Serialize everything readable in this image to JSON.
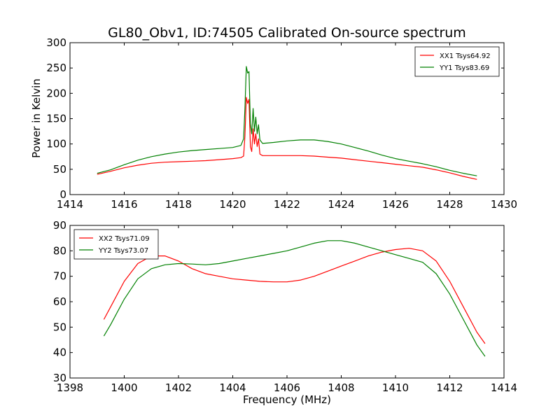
{
  "chart_data": [
    {
      "type": "line",
      "title": "GL80_Obv1, ID:74505 Calibrated On-source spectrum",
      "xlabel": "",
      "ylabel": "Power in Kelvin",
      "xlim": [
        1414,
        1430
      ],
      "ylim": [
        0,
        300
      ],
      "xticks": [
        "1414",
        "1416",
        "1418",
        "1420",
        "1422",
        "1424",
        "1426",
        "1428",
        "1430"
      ],
      "yticks": [
        "0",
        "50",
        "100",
        "150",
        "200",
        "250",
        "300"
      ],
      "legend_position": "top-right",
      "grid": false,
      "series": [
        {
          "name": "XX1 Tsys64.92",
          "color": "#ff0000",
          "points": [
            [
              1415.0,
              40
            ],
            [
              1415.5,
              46
            ],
            [
              1416.0,
              53
            ],
            [
              1416.5,
              58
            ],
            [
              1417.0,
              62
            ],
            [
              1417.5,
              64
            ],
            [
              1418.0,
              65
            ],
            [
              1418.5,
              66
            ],
            [
              1419.0,
              67
            ],
            [
              1419.5,
              69
            ],
            [
              1420.0,
              71
            ],
            [
              1420.3,
              73
            ],
            [
              1420.4,
              76
            ],
            [
              1420.45,
              115
            ],
            [
              1420.5,
              192
            ],
            [
              1420.55,
              180
            ],
            [
              1420.6,
              188
            ],
            [
              1420.65,
              95
            ],
            [
              1420.7,
              85
            ],
            [
              1420.75,
              130
            ],
            [
              1420.8,
              100
            ],
            [
              1420.85,
              120
            ],
            [
              1420.9,
              95
            ],
            [
              1420.95,
              110
            ],
            [
              1421.0,
              80
            ],
            [
              1421.1,
              77
            ],
            [
              1421.5,
              77
            ],
            [
              1422.0,
              77
            ],
            [
              1422.5,
              77
            ],
            [
              1423.0,
              76
            ],
            [
              1423.5,
              74
            ],
            [
              1424.0,
              72
            ],
            [
              1424.5,
              69
            ],
            [
              1425.0,
              66
            ],
            [
              1425.5,
              63
            ],
            [
              1426.0,
              60
            ],
            [
              1426.5,
              57
            ],
            [
              1427.0,
              54
            ],
            [
              1427.5,
              49
            ],
            [
              1428.0,
              43
            ],
            [
              1428.5,
              36
            ],
            [
              1429.0,
              30
            ]
          ]
        },
        {
          "name": "YY1 Tsys83.69",
          "color": "#008000",
          "points": [
            [
              1415.0,
              42
            ],
            [
              1415.5,
              49
            ],
            [
              1416.0,
              59
            ],
            [
              1416.5,
              68
            ],
            [
              1417.0,
              75
            ],
            [
              1417.5,
              80
            ],
            [
              1418.0,
              84
            ],
            [
              1418.5,
              87
            ],
            [
              1419.0,
              89
            ],
            [
              1419.5,
              91
            ],
            [
              1420.0,
              93
            ],
            [
              1420.3,
              97
            ],
            [
              1420.4,
              110
            ],
            [
              1420.45,
              170
            ],
            [
              1420.5,
              253
            ],
            [
              1420.55,
              240
            ],
            [
              1420.6,
              243
            ],
            [
              1420.65,
              140
            ],
            [
              1420.7,
              120
            ],
            [
              1420.75,
              170
            ],
            [
              1420.8,
              125
            ],
            [
              1420.85,
              153
            ],
            [
              1420.9,
              120
            ],
            [
              1420.95,
              138
            ],
            [
              1421.0,
              108
            ],
            [
              1421.1,
              101
            ],
            [
              1421.5,
              103
            ],
            [
              1422.0,
              106
            ],
            [
              1422.5,
              108
            ],
            [
              1423.0,
              108
            ],
            [
              1423.5,
              105
            ],
            [
              1424.0,
              100
            ],
            [
              1424.5,
              93
            ],
            [
              1425.0,
              86
            ],
            [
              1425.5,
              78
            ],
            [
              1426.0,
              71
            ],
            [
              1426.5,
              66
            ],
            [
              1427.0,
              61
            ],
            [
              1427.5,
              55
            ],
            [
              1428.0,
              48
            ],
            [
              1428.5,
              42
            ],
            [
              1429.0,
              37
            ]
          ]
        }
      ]
    },
    {
      "type": "line",
      "title": "",
      "xlabel": "Frequency (MHz)",
      "ylabel": "",
      "xlim": [
        1398,
        1414
      ],
      "ylim": [
        30,
        90
      ],
      "xticks": [
        "1398",
        "1400",
        "1402",
        "1404",
        "1406",
        "1408",
        "1410",
        "1412",
        "1414"
      ],
      "yticks": [
        "30",
        "40",
        "50",
        "60",
        "70",
        "80",
        "90"
      ],
      "legend_position": "top-left",
      "grid": false,
      "series": [
        {
          "name": "XX2 Tsys71.09",
          "color": "#ff0000",
          "points": [
            [
              1399.25,
              53
            ],
            [
              1399.5,
              58
            ],
            [
              1400.0,
              68
            ],
            [
              1400.5,
              75
            ],
            [
              1401.0,
              78
            ],
            [
              1401.5,
              78
            ],
            [
              1402.0,
              76
            ],
            [
              1402.5,
              73
            ],
            [
              1403.0,
              71
            ],
            [
              1403.5,
              70
            ],
            [
              1404.0,
              69
            ],
            [
              1404.5,
              68.5
            ],
            [
              1405.0,
              68
            ],
            [
              1405.5,
              67.8
            ],
            [
              1406.0,
              67.8
            ],
            [
              1406.5,
              68.5
            ],
            [
              1407.0,
              70
            ],
            [
              1407.5,
              72
            ],
            [
              1408.0,
              74
            ],
            [
              1408.5,
              76
            ],
            [
              1409.0,
              78
            ],
            [
              1409.5,
              79.5
            ],
            [
              1410.0,
              80.5
            ],
            [
              1410.5,
              81
            ],
            [
              1411.0,
              80
            ],
            [
              1411.5,
              76
            ],
            [
              1412.0,
              68
            ],
            [
              1412.5,
              58
            ],
            [
              1413.0,
              48
            ],
            [
              1413.3,
              43.5
            ]
          ]
        },
        {
          "name": "YY2 Tsys73.07",
          "color": "#008000",
          "points": [
            [
              1399.25,
              46.5
            ],
            [
              1399.5,
              51
            ],
            [
              1400.0,
              61
            ],
            [
              1400.5,
              69
            ],
            [
              1401.0,
              73
            ],
            [
              1401.5,
              74.5
            ],
            [
              1402.0,
              75
            ],
            [
              1402.5,
              74.8
            ],
            [
              1403.0,
              74.5
            ],
            [
              1403.5,
              75
            ],
            [
              1404.0,
              76
            ],
            [
              1404.5,
              77
            ],
            [
              1405.0,
              78
            ],
            [
              1405.5,
              79
            ],
            [
              1406.0,
              80
            ],
            [
              1406.5,
              81.5
            ],
            [
              1407.0,
              83
            ],
            [
              1407.5,
              84
            ],
            [
              1408.0,
              84
            ],
            [
              1408.5,
              83
            ],
            [
              1409.0,
              81.5
            ],
            [
              1409.5,
              80
            ],
            [
              1410.0,
              78.5
            ],
            [
              1410.5,
              77
            ],
            [
              1411.0,
              75.5
            ],
            [
              1411.5,
              71
            ],
            [
              1412.0,
              63
            ],
            [
              1412.5,
              53
            ],
            [
              1413.0,
              43
            ],
            [
              1413.3,
              38.5
            ]
          ]
        }
      ]
    }
  ]
}
